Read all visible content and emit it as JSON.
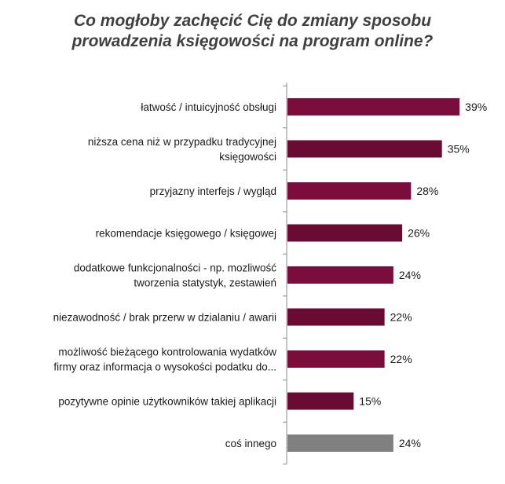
{
  "chart_data": {
    "type": "bar",
    "orientation": "horizontal",
    "title_lines": [
      "Co mogłoby zachęcić Cię do zmiany sposobu",
      "prowadzenia księgowości na program online?"
    ],
    "categories": [
      [
        "łatwość / intuicyjność obsługi"
      ],
      [
        "niższa cena niż w przypadku tradycyjnej",
        "księgowości"
      ],
      [
        "przyjazny interfejs / wygląd"
      ],
      [
        "rekomendacje księgowego / księgowej"
      ],
      [
        "dodatkowe funkcjonalności - np. mozliwość",
        "tworzenia statystyk, zestawień"
      ],
      [
        "niezawodność / brak przerw w dzialaniu / awarii"
      ],
      [
        "możliwość bieżącego kontrolowania wydatków",
        "firmy oraz informacja o wysokości podatku do..."
      ],
      [
        "pozytywne opinie użytkowników takiej aplikacji"
      ],
      [
        "coś innego"
      ]
    ],
    "values": [
      39,
      35,
      28,
      26,
      24,
      22,
      22,
      15,
      24
    ],
    "value_labels": [
      "39%",
      "35%",
      "28%",
      "26%",
      "24%",
      "22%",
      "22%",
      "15%",
      "24%"
    ],
    "unit": "%",
    "colors": {
      "bar": "#7a0d3b",
      "bar_alt": "#6a0b33",
      "other": "#808080",
      "axis": "#888888",
      "title": "#404040"
    },
    "grid": false,
    "legend": "none"
  }
}
